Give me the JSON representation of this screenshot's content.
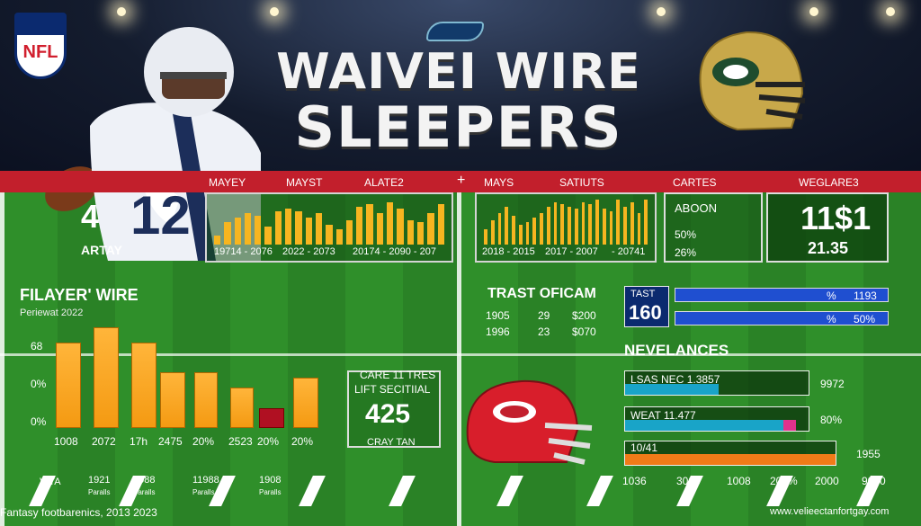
{
  "header": {
    "title_line1": "WAIVEI WIRE",
    "title_line2": "SLEEPERS",
    "nfl_text": "NFL"
  },
  "player": {
    "number_text": "12",
    "badge_number": "4",
    "badge_text": "ARTAY"
  },
  "redbar_labels": [
    "MAYEY",
    "MAYST",
    "ALATE2",
    "+",
    "MAYS",
    "SATIUTS",
    "CARTES",
    "WEGLARE3"
  ],
  "left_chart": {
    "labels": [
      "19714 - 2076",
      "2022 - 2073",
      "20174 - 2090 - 207"
    ],
    "values": [
      0.2,
      0.5,
      0.6,
      0.7,
      0.65,
      0.4,
      0.75,
      0.8,
      0.75,
      0.6,
      0.7,
      0.45,
      0.35,
      0.55,
      0.85,
      0.9,
      0.7,
      0.95,
      0.8,
      0.55,
      0.5,
      0.7,
      0.9
    ]
  },
  "mid_chart": {
    "labels": [
      "2018 - 2015",
      "2017 - 2007",
      "- 20741"
    ],
    "values": [
      0.35,
      0.55,
      0.7,
      0.85,
      0.65,
      0.45,
      0.5,
      0.6,
      0.7,
      0.85,
      0.95,
      0.9,
      0.85,
      0.8,
      0.95,
      0.9,
      1.0,
      0.8,
      0.75,
      1.0,
      0.85,
      0.95,
      0.7,
      1.0
    ]
  },
  "right_stats": {
    "title": "ABOON",
    "row1": "50%",
    "row2": "26%"
  },
  "score_box": {
    "big": "11$1",
    "small": "21.35"
  },
  "left_panel": {
    "title": "FILAYER' WIRE",
    "subtitle": "Periewat 2022",
    "y_labels": [
      "68",
      "0%",
      "0%"
    ],
    "bar_values": [
      0.85,
      1.0,
      0.85,
      0.55,
      0.55,
      0.4,
      0.2,
      0.5
    ],
    "x_labels": [
      "1008",
      "2072",
      "17h",
      "2475",
      "20%",
      "2523",
      "20%",
      "20%"
    ]
  },
  "center_box": {
    "line1": "CARE 11 TRES",
    "line2": "LIFT SECITIIAL",
    "value": "425",
    "caption": "CRAY TAN"
  },
  "trast": {
    "title": "TRAST OFICAM",
    "row1": [
      "1905",
      "29",
      "$200"
    ],
    "row2": [
      "1996",
      "23",
      "$070"
    ]
  },
  "tast": {
    "label": "TAST",
    "value": "160",
    "bar1_text": "%",
    "bar1_num": "1193",
    "bar2_text": "%",
    "bar2_num": "50%"
  },
  "nevelances": {
    "title": "NEVELANCES",
    "bar1_label": "LSAS NEC 1.3857",
    "bar1_num": "9972",
    "bar2_label": "WEAT 11.477",
    "bar2_num": "80%",
    "bar3_label": "10/41",
    "bar3_num": "1955"
  },
  "bottom_right_labels": [
    "1036",
    "3003",
    "1008",
    "200%",
    "2000",
    "9000"
  ],
  "bottom_left": {
    "brand": "VITA",
    "cols": [
      "1921",
      "2088",
      "11988",
      "1908"
    ],
    "subcols": [
      "Paralls",
      "Paralls",
      "Paralls",
      "Paralls"
    ]
  },
  "footer": {
    "left": "Fantasy footbarenics, 2013 2023",
    "right": "www.velieectanfortgay.com"
  },
  "colors": {
    "accent_red": "#c21f2c",
    "bar_yellow": "#f6b520",
    "navy": "#0b2a6f",
    "blue": "#1f4fd0"
  }
}
